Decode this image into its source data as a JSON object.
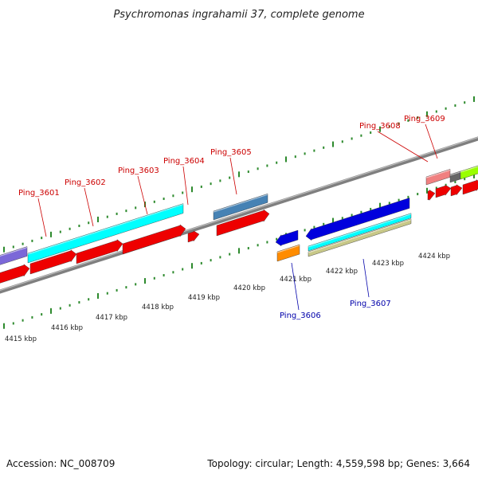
{
  "title": "Psychromonas ingrahamii 37, complete genome",
  "footer": {
    "accession": "Accession: NC_008709",
    "summary": "Topology: circular; Length: 4,559,598 bp; Genes: 3,664"
  },
  "colors": {
    "forward_label": "#cc0000",
    "reverse_label": "#0000aa",
    "tick": "#2d8a2d",
    "backbone": "#7f7f7f"
  },
  "scale_labels": [
    "4415 kbp",
    "4416 kbp",
    "4417 kbp",
    "4418 kbp",
    "4419 kbp",
    "4420 kbp",
    "4421 kbp",
    "4422 kbp",
    "4423 kbp",
    "4424 kbp"
  ],
  "genes_forward": [
    {
      "label": "Ping_3601",
      "color": "#ee0000"
    },
    {
      "label": "Ping_3602",
      "color": "#ee0000"
    },
    {
      "label": "Ping_3603",
      "color": "#ee0000"
    },
    {
      "label": "Ping_3604",
      "color": "#ee0000"
    },
    {
      "label": "Ping_3605",
      "color": "#ee0000"
    },
    {
      "label": "Ping_3608",
      "color": "#ee0000"
    },
    {
      "label": "Ping_3609",
      "color": "#ee0000"
    }
  ],
  "genes_reverse": [
    {
      "label": "Ping_3606",
      "color": "#0000dd"
    },
    {
      "label": "Ping_3607",
      "color": "#0000dd"
    }
  ],
  "features": {
    "purple": "#7b68d8",
    "cyan": "#00ffff",
    "steelblue": "#4682b4",
    "orange": "#ff8c00",
    "tan": "#c8c888",
    "salmon": "#f08080",
    "gray": "#666666",
    "lime": "#99ff00"
  }
}
